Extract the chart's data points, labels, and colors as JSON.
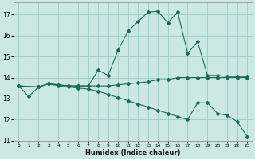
{
  "xlabel": "Humidex (Indice chaleur)",
  "background_color": "#cce8e4",
  "grid_color": "#99cccc",
  "line_color": "#1a6b5a",
  "xlim": [
    -0.5,
    23.5
  ],
  "ylim": [
    11,
    17.55
  ],
  "yticks": [
    11,
    12,
    13,
    14,
    15,
    16,
    17
  ],
  "xticks": [
    0,
    1,
    2,
    3,
    4,
    5,
    6,
    7,
    8,
    9,
    10,
    11,
    12,
    13,
    14,
    15,
    16,
    17,
    18,
    19,
    20,
    21,
    22,
    23
  ],
  "lines": [
    {
      "x": [
        0,
        1,
        2,
        3,
        4,
        5,
        6,
        7,
        8,
        9,
        10,
        11,
        12,
        13,
        14,
        15,
        16,
        17,
        18,
        19,
        20,
        21,
        22,
        23
      ],
      "y": [
        13.6,
        13.1,
        13.55,
        13.7,
        13.65,
        13.6,
        13.6,
        13.6,
        14.35,
        14.1,
        15.3,
        16.2,
        16.65,
        17.1,
        17.15,
        16.6,
        17.1,
        15.15,
        15.7,
        14.1,
        14.1,
        14.05,
        14.05,
        14.05
      ]
    },
    {
      "x": [
        0,
        2,
        3,
        4,
        5,
        6,
        7,
        8,
        9,
        10,
        11,
        12,
        13,
        14,
        15,
        16,
        17,
        18,
        19,
        20,
        21,
        22,
        23
      ],
      "y": [
        13.6,
        13.55,
        13.7,
        13.65,
        13.6,
        13.6,
        13.6,
        13.6,
        13.6,
        13.65,
        13.7,
        13.75,
        13.8,
        13.9,
        13.9,
        14.0,
        14.0,
        14.0,
        14.0,
        14.0,
        14.0,
        14.0,
        14.0
      ]
    },
    {
      "x": [
        0,
        2,
        3,
        4,
        5,
        6,
        7,
        8,
        9,
        10,
        11,
        12,
        13,
        14,
        15,
        16,
        17,
        18,
        19,
        20,
        21,
        22,
        23
      ],
      "y": [
        13.6,
        13.55,
        13.7,
        13.6,
        13.55,
        13.5,
        13.45,
        13.35,
        13.2,
        13.05,
        12.9,
        12.75,
        12.6,
        12.45,
        12.3,
        12.15,
        12.0,
        12.8,
        12.8,
        12.3,
        12.2,
        11.9,
        11.2
      ]
    }
  ]
}
